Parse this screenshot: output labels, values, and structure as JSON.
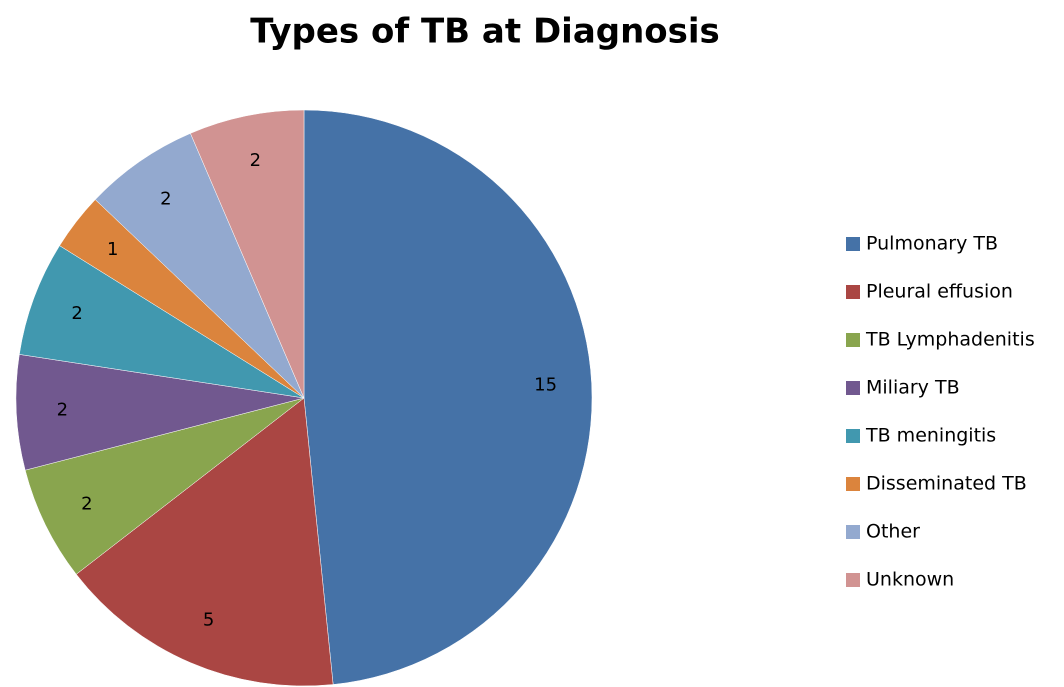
{
  "chart_data": {
    "type": "pie",
    "title": "Types of TB at Diagnosis",
    "categories": [
      "Pulmonary TB",
      "Pleural effusion",
      "TB Lymphadenitis",
      "Miliary TB",
      "TB meningitis",
      "Disseminated TB",
      "Other",
      "Unknown"
    ],
    "values": [
      15,
      5,
      2,
      2,
      2,
      1,
      2,
      2
    ],
    "colors": [
      "#4572a7",
      "#aa4643",
      "#89a54e",
      "#71588f",
      "#4198af",
      "#db843d",
      "#93a9cf",
      "#d19392"
    ],
    "legend": "right"
  }
}
